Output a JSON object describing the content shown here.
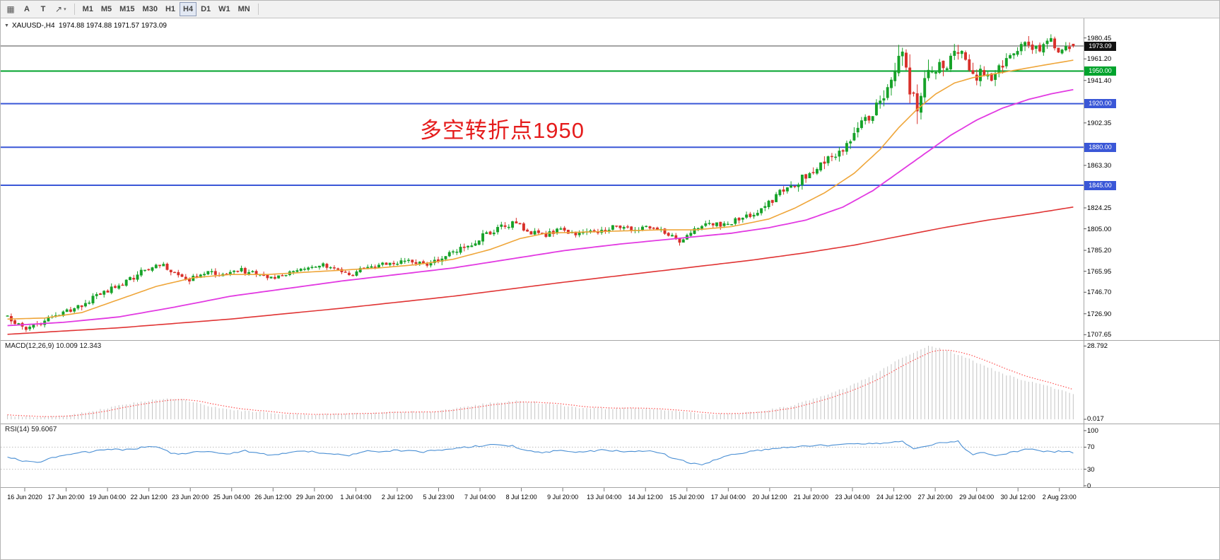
{
  "colors": {
    "up": "#16a228",
    "down": "#d8302a",
    "ma_fast": "#efa63a",
    "ma_mid": "#e23ae2",
    "ma_slow": "#e03434",
    "macd_hist": "#c4c4c4",
    "macd_signal": "#ff5252",
    "rsi_line": "#4a8fd4",
    "hline_green": "#00a32c",
    "hline_blue": "#3a57d7",
    "price_line": "#4a4a4a",
    "annotation": "#e51c1c",
    "badge_current_bg": "#111111",
    "badge_green_bg": "#00a32c",
    "badge_blue_bg": "#3a57d7"
  },
  "toolbar": {
    "grid_icon": "▦",
    "tool_a": "A",
    "tool_t": "T",
    "draw_icon": "↗",
    "caret": "▾",
    "timeframes": [
      "M1",
      "M5",
      "M15",
      "M30",
      "H1",
      "H4",
      "D1",
      "W1",
      "MN"
    ],
    "active_timeframe": "H4"
  },
  "chart": {
    "collapse_icon": "▼",
    "symbol_info": "XAUUSD-,H4  1974.88 1974.88 1971.57 1973.09",
    "annotation": "多空转折点1950"
  },
  "chart_data": {
    "type": "candlestick",
    "symbol": "XAUUSD-",
    "timeframe": "H4",
    "current_ohlc": {
      "open": 1974.88,
      "high": 1974.88,
      "low": 1971.57,
      "close": 1973.09
    },
    "price_axis_labels": [
      "1980.45",
      "1961.20",
      "1941.40",
      "1902.35",
      "1863.30",
      "1824.25",
      "1805.00",
      "1785.20",
      "1765.95",
      "1746.70",
      "1726.90",
      "1707.65"
    ],
    "horizontal_lines": [
      {
        "price": 1973.09,
        "label": "1973.09",
        "type": "current-price"
      },
      {
        "price": 1950.0,
        "label": "1950.00",
        "type": "pivot-green"
      },
      {
        "price": 1920.0,
        "label": "1920.00",
        "type": "level-blue"
      },
      {
        "price": 1880.0,
        "label": "1880.00",
        "type": "level-blue"
      },
      {
        "price": 1845.0,
        "label": "1845.00",
        "type": "level-blue"
      }
    ],
    "candles_n": 288,
    "price_path": [
      [
        0,
        1725
      ],
      [
        3,
        1719
      ],
      [
        6,
        1714
      ],
      [
        9,
        1718
      ],
      [
        12,
        1722
      ],
      [
        16,
        1727
      ],
      [
        20,
        1734
      ],
      [
        24,
        1741
      ],
      [
        28,
        1749
      ],
      [
        33,
        1757
      ],
      [
        38,
        1767
      ],
      [
        42,
        1773
      ],
      [
        46,
        1763
      ],
      [
        50,
        1759
      ],
      [
        55,
        1765
      ],
      [
        60,
        1762
      ],
      [
        64,
        1767
      ],
      [
        68,
        1763
      ],
      [
        72,
        1759
      ],
      [
        77,
        1764
      ],
      [
        82,
        1769
      ],
      [
        86,
        1772
      ],
      [
        90,
        1767
      ],
      [
        93,
        1762
      ],
      [
        97,
        1770
      ],
      [
        102,
        1772
      ],
      [
        106,
        1774
      ],
      [
        110,
        1776
      ],
      [
        114,
        1773
      ],
      [
        118,
        1778
      ],
      [
        122,
        1784
      ],
      [
        126,
        1791
      ],
      [
        130,
        1800
      ],
      [
        134,
        1807
      ],
      [
        138,
        1811
      ],
      [
        141,
        1803
      ],
      [
        145,
        1799
      ],
      [
        150,
        1804
      ],
      [
        155,
        1800
      ],
      [
        160,
        1803
      ],
      [
        165,
        1807
      ],
      [
        170,
        1803
      ],
      [
        175,
        1807
      ],
      [
        179,
        1800
      ],
      [
        182,
        1794
      ],
      [
        186,
        1806
      ],
      [
        190,
        1808
      ],
      [
        194,
        1810
      ],
      [
        198,
        1813
      ],
      [
        202,
        1819
      ],
      [
        206,
        1829
      ],
      [
        210,
        1841
      ],
      [
        214,
        1849
      ],
      [
        218,
        1859
      ],
      [
        222,
        1869
      ],
      [
        226,
        1879
      ],
      [
        230,
        1896
      ],
      [
        234,
        1911
      ],
      [
        237,
        1927
      ],
      [
        240,
        1951
      ],
      [
        242,
        1974
      ],
      [
        244,
        1938
      ],
      [
        246,
        1914
      ],
      [
        248,
        1941
      ],
      [
        250,
        1953
      ],
      [
        252,
        1957
      ],
      [
        254,
        1948
      ],
      [
        256,
        1969
      ],
      [
        258,
        1973
      ],
      [
        260,
        1951
      ],
      [
        262,
        1944
      ],
      [
        264,
        1951
      ],
      [
        266,
        1946
      ],
      [
        268,
        1953
      ],
      [
        270,
        1959
      ],
      [
        272,
        1966
      ],
      [
        274,
        1973
      ],
      [
        276,
        1976
      ],
      [
        278,
        1970
      ],
      [
        280,
        1974
      ],
      [
        282,
        1977
      ],
      [
        284,
        1969
      ],
      [
        286,
        1972
      ],
      [
        287,
        1973
      ]
    ],
    "volatility_path": [
      [
        0,
        5
      ],
      [
        30,
        6
      ],
      [
        60,
        4.5
      ],
      [
        100,
        4
      ],
      [
        125,
        7
      ],
      [
        145,
        5
      ],
      [
        180,
        5
      ],
      [
        200,
        6
      ],
      [
        215,
        8
      ],
      [
        228,
        10
      ],
      [
        236,
        13
      ],
      [
        240,
        18
      ],
      [
        244,
        22
      ],
      [
        248,
        16
      ],
      [
        254,
        13
      ],
      [
        260,
        12
      ],
      [
        268,
        10
      ],
      [
        275,
        9
      ],
      [
        287,
        7
      ]
    ],
    "ma_fast_path": [
      [
        0,
        1722
      ],
      [
        10,
        1723
      ],
      [
        20,
        1728
      ],
      [
        30,
        1740
      ],
      [
        40,
        1752
      ],
      [
        50,
        1760
      ],
      [
        60,
        1763
      ],
      [
        70,
        1763
      ],
      [
        80,
        1765
      ],
      [
        90,
        1767
      ],
      [
        100,
        1769
      ],
      [
        110,
        1772
      ],
      [
        120,
        1777
      ],
      [
        130,
        1786
      ],
      [
        138,
        1796
      ],
      [
        145,
        1801
      ],
      [
        155,
        1802
      ],
      [
        165,
        1803
      ],
      [
        175,
        1804
      ],
      [
        185,
        1804
      ],
      [
        195,
        1807
      ],
      [
        205,
        1814
      ],
      [
        212,
        1824
      ],
      [
        220,
        1838
      ],
      [
        228,
        1856
      ],
      [
        235,
        1878
      ],
      [
        240,
        1898
      ],
      [
        245,
        1915
      ],
      [
        250,
        1929
      ],
      [
        255,
        1939
      ],
      [
        260,
        1944
      ],
      [
        265,
        1947
      ],
      [
        270,
        1950
      ],
      [
        275,
        1953
      ],
      [
        280,
        1956
      ],
      [
        287,
        1960
      ]
    ],
    "ma_mid_path": [
      [
        0,
        1716
      ],
      [
        15,
        1719
      ],
      [
        30,
        1724
      ],
      [
        45,
        1733
      ],
      [
        60,
        1743
      ],
      [
        75,
        1750
      ],
      [
        90,
        1757
      ],
      [
        105,
        1763
      ],
      [
        120,
        1769
      ],
      [
        135,
        1777
      ],
      [
        150,
        1785
      ],
      [
        165,
        1791
      ],
      [
        180,
        1796
      ],
      [
        195,
        1801
      ],
      [
        205,
        1806
      ],
      [
        215,
        1813
      ],
      [
        225,
        1825
      ],
      [
        233,
        1840
      ],
      [
        240,
        1857
      ],
      [
        247,
        1874
      ],
      [
        254,
        1891
      ],
      [
        261,
        1905
      ],
      [
        268,
        1916
      ],
      [
        275,
        1924
      ],
      [
        281,
        1929
      ],
      [
        287,
        1933
      ]
    ],
    "ma_slow_path": [
      [
        0,
        1708
      ],
      [
        30,
        1714
      ],
      [
        60,
        1722
      ],
      [
        90,
        1732
      ],
      [
        120,
        1743
      ],
      [
        150,
        1756
      ],
      [
        180,
        1768
      ],
      [
        200,
        1776
      ],
      [
        215,
        1783
      ],
      [
        228,
        1790
      ],
      [
        240,
        1798
      ],
      [
        252,
        1806
      ],
      [
        264,
        1813
      ],
      [
        276,
        1819
      ],
      [
        287,
        1825
      ]
    ],
    "macd": {
      "label": "MACD(12,26,9) 10.009 12.343",
      "axis_max": "28.792",
      "axis_min": "0.017",
      "path": [
        [
          0,
          1.5
        ],
        [
          8,
          0.8
        ],
        [
          16,
          1.5
        ],
        [
          24,
          3.5
        ],
        [
          32,
          6
        ],
        [
          40,
          7.8
        ],
        [
          46,
          8.2
        ],
        [
          52,
          6
        ],
        [
          58,
          4
        ],
        [
          66,
          3
        ],
        [
          74,
          2.2
        ],
        [
          82,
          1.8
        ],
        [
          90,
          2
        ],
        [
          98,
          2.6
        ],
        [
          106,
          3
        ],
        [
          114,
          3
        ],
        [
          122,
          4.5
        ],
        [
          130,
          6.5
        ],
        [
          138,
          7.2
        ],
        [
          146,
          6
        ],
        [
          154,
          4.5
        ],
        [
          162,
          4.2
        ],
        [
          170,
          4.4
        ],
        [
          178,
          3.6
        ],
        [
          186,
          2.2
        ],
        [
          194,
          2
        ],
        [
          202,
          3
        ],
        [
          210,
          5
        ],
        [
          218,
          8.5
        ],
        [
          226,
          12.5
        ],
        [
          234,
          18
        ],
        [
          240,
          23.5
        ],
        [
          245,
          27
        ],
        [
          248,
          28.8
        ],
        [
          252,
          27.5
        ],
        [
          256,
          25.5
        ],
        [
          260,
          23
        ],
        [
          264,
          20.5
        ],
        [
          268,
          18
        ],
        [
          272,
          16
        ],
        [
          276,
          14.5
        ],
        [
          280,
          13
        ],
        [
          284,
          11.5
        ],
        [
          287,
          10
        ]
      ]
    },
    "rsi": {
      "label": "RSI(14) 59.6067",
      "axis": [
        "100",
        "70",
        "30",
        "0"
      ],
      "levels": [
        70,
        30
      ],
      "path": [
        [
          0,
          52
        ],
        [
          4,
          45
        ],
        [
          8,
          42
        ],
        [
          12,
          50
        ],
        [
          16,
          55
        ],
        [
          20,
          60
        ],
        [
          24,
          63
        ],
        [
          28,
          66
        ],
        [
          32,
          65
        ],
        [
          36,
          69
        ],
        [
          40,
          71
        ],
        [
          44,
          60
        ],
        [
          48,
          57
        ],
        [
          52,
          63
        ],
        [
          56,
          60
        ],
        [
          60,
          58
        ],
        [
          64,
          64
        ],
        [
          68,
          58
        ],
        [
          72,
          55
        ],
        [
          76,
          60
        ],
        [
          80,
          63
        ],
        [
          84,
          60
        ],
        [
          88,
          57
        ],
        [
          92,
          54
        ],
        [
          96,
          63
        ],
        [
          100,
          62
        ],
        [
          104,
          64
        ],
        [
          108,
          63
        ],
        [
          112,
          61
        ],
        [
          116,
          65
        ],
        [
          120,
          68
        ],
        [
          124,
          70
        ],
        [
          128,
          73
        ],
        [
          132,
          74
        ],
        [
          136,
          72
        ],
        [
          140,
          63
        ],
        [
          144,
          60
        ],
        [
          148,
          64
        ],
        [
          152,
          60
        ],
        [
          156,
          62
        ],
        [
          160,
          65
        ],
        [
          164,
          63
        ],
        [
          168,
          61
        ],
        [
          172,
          64
        ],
        [
          176,
          60
        ],
        [
          180,
          48
        ],
        [
          184,
          41
        ],
        [
          187,
          37
        ],
        [
          190,
          46
        ],
        [
          194,
          55
        ],
        [
          198,
          60
        ],
        [
          202,
          64
        ],
        [
          206,
          67
        ],
        [
          210,
          70
        ],
        [
          214,
          72
        ],
        [
          218,
          74
        ],
        [
          222,
          73
        ],
        [
          226,
          75
        ],
        [
          230,
          77
        ],
        [
          234,
          76
        ],
        [
          238,
          79
        ],
        [
          241,
          81
        ],
        [
          244,
          66
        ],
        [
          247,
          72
        ],
        [
          250,
          76
        ],
        [
          253,
          79
        ],
        [
          256,
          82
        ],
        [
          258,
          65
        ],
        [
          260,
          57
        ],
        [
          263,
          60
        ],
        [
          266,
          55
        ],
        [
          269,
          58
        ],
        [
          272,
          63
        ],
        [
          275,
          67
        ],
        [
          278,
          64
        ],
        [
          281,
          61
        ],
        [
          284,
          63
        ],
        [
          287,
          60
        ]
      ]
    },
    "time_labels": [
      "16 Jun 2020",
      "17 Jun 20:00",
      "19 Jun 04:00",
      "22 Jun 12:00",
      "23 Jun 20:00",
      "25 Jun 04:00",
      "26 Jun 12:00",
      "29 Jun 20:00",
      "1 Jul 04:00",
      "2 Jul 12:00",
      "5 Jul 23:00",
      "7 Jul 04:00",
      "8 Jul 12:00",
      "9 Jul 20:00",
      "13 Jul 04:00",
      "14 Jul 12:00",
      "15 Jul 20:00",
      "17 Jul 04:00",
      "20 Jul 12:00",
      "21 Jul 20:00",
      "23 Jul 04:00",
      "24 Jul 12:00",
      "27 Jul 20:00",
      "29 Jul 04:00",
      "30 Jul 12:00",
      "2 Aug 23:00"
    ]
  }
}
